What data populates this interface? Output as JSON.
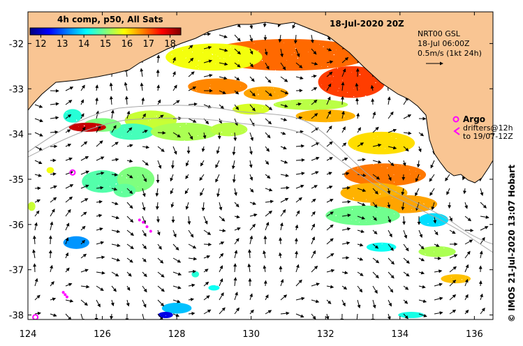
{
  "map": {
    "date_title": "18-Jul-2020 20Z",
    "credit": "© IMOS 21-Jul-2020 13:07 Hobart",
    "x_axis": {
      "min": 124,
      "max": 136.5,
      "ticks": [
        124,
        126,
        128,
        130,
        132,
        134,
        136
      ],
      "labels": [
        "124",
        "126",
        "128",
        "130",
        "132",
        "134",
        "136"
      ]
    },
    "y_axis": {
      "min": -38.1,
      "max": -31.3,
      "ticks": [
        -32,
        -33,
        -34,
        -35,
        -36,
        -37,
        -38
      ],
      "labels": [
        "-32",
        "-33",
        "-34",
        "-35",
        "-36",
        "-37",
        "-38"
      ]
    },
    "colors": {
      "land": "#f9c593",
      "ocean": "#ffffff",
      "coast": "#000000",
      "bathymetry": "#a8a8a8",
      "argo_marker": "#ff00ff",
      "drifter": "#ff00ff",
      "vector": "#000000"
    }
  },
  "colorbar": {
    "title": "4h comp, p50, All Sats",
    "min": 11.5,
    "max": 18.5,
    "tick_values": [
      12,
      13,
      14,
      15,
      16,
      17,
      18
    ],
    "tick_labels": [
      "12",
      "13",
      "14",
      "15",
      "16",
      "17",
      "18"
    ],
    "stops": [
      "#00007f",
      "#0000ff",
      "#007fff",
      "#00ffff",
      "#7fff7f",
      "#ffff00",
      "#ff7f00",
      "#ff0000",
      "#7f0000"
    ]
  },
  "current_legend": {
    "line1": "NRT00 GSL",
    "line2": "18-Jul 06:00Z",
    "line3": "0.5m/s (1kt 24h)",
    "arrow_icon": "arrow-right-icon"
  },
  "argo_legend": {
    "marker_icon": "argo-float-icon",
    "label": "Argo",
    "drifter_icon": "drifter-track-icon",
    "drifter_line1": "drifters@12h",
    "drifter_line2": "to 19/07-12Z"
  },
  "argo_floats": [
    {
      "lon": 125.2,
      "lat": -34.85
    },
    {
      "lon": 124.2,
      "lat": -38.05
    }
  ],
  "drifters": [
    {
      "points": [
        [
          127.0,
          -35.9
        ],
        [
          127.1,
          -35.95
        ],
        [
          127.2,
          -36.05
        ],
        [
          127.3,
          -36.15
        ]
      ]
    },
    {
      "points": [
        [
          124.95,
          -37.5
        ],
        [
          125.0,
          -37.55
        ],
        [
          125.05,
          -37.6
        ]
      ]
    }
  ],
  "sst_patches": [
    {
      "lon": 131.0,
      "lat": -32.25,
      "rx": 2.2,
      "ry": 0.35,
      "temp": 16.9
    },
    {
      "lon": 129.0,
      "lat": -32.3,
      "rx": 1.3,
      "ry": 0.3,
      "temp": 15.8
    },
    {
      "lon": 132.7,
      "lat": -32.85,
      "rx": 0.9,
      "ry": 0.35,
      "temp": 17.2
    },
    {
      "lon": 129.1,
      "lat": -32.95,
      "rx": 0.8,
      "ry": 0.18,
      "temp": 16.7
    },
    {
      "lon": 130.4,
      "lat": -33.1,
      "rx": 0.6,
      "ry": 0.15,
      "temp": 16.5
    },
    {
      "lon": 131.6,
      "lat": -33.35,
      "rx": 1.0,
      "ry": 0.12,
      "temp": 15.4
    },
    {
      "lon": 130.0,
      "lat": -33.45,
      "rx": 0.5,
      "ry": 0.12,
      "temp": 15.6
    },
    {
      "lon": 132.0,
      "lat": -33.6,
      "rx": 0.8,
      "ry": 0.14,
      "temp": 16.4
    },
    {
      "lon": 127.3,
      "lat": -33.7,
      "rx": 0.7,
      "ry": 0.22,
      "temp": 15.5
    },
    {
      "lon": 126.8,
      "lat": -33.95,
      "rx": 0.6,
      "ry": 0.18,
      "temp": 14.6
    },
    {
      "lon": 128.2,
      "lat": -33.95,
      "rx": 0.9,
      "ry": 0.2,
      "temp": 15.3
    },
    {
      "lon": 129.4,
      "lat": -33.9,
      "rx": 0.5,
      "ry": 0.15,
      "temp": 15.4
    },
    {
      "lon": 126.0,
      "lat": -33.8,
      "rx": 0.5,
      "ry": 0.15,
      "temp": 15.0
    },
    {
      "lon": 125.2,
      "lat": -33.6,
      "rx": 0.25,
      "ry": 0.15,
      "temp": 14.4
    },
    {
      "lon": 125.6,
      "lat": -33.85,
      "rx": 0.5,
      "ry": 0.1,
      "temp": 18.0
    },
    {
      "lon": 126.0,
      "lat": -35.05,
      "rx": 0.55,
      "ry": 0.25,
      "temp": 14.7
    },
    {
      "lon": 126.9,
      "lat": -35.0,
      "rx": 0.5,
      "ry": 0.28,
      "temp": 15.0
    },
    {
      "lon": 126.6,
      "lat": -35.25,
      "rx": 0.3,
      "ry": 0.15,
      "temp": 14.8
    },
    {
      "lon": 133.5,
      "lat": -34.2,
      "rx": 0.9,
      "ry": 0.25,
      "temp": 16.1
    },
    {
      "lon": 133.6,
      "lat": -34.9,
      "rx": 1.1,
      "ry": 0.25,
      "temp": 16.8
    },
    {
      "lon": 133.3,
      "lat": -35.3,
      "rx": 0.9,
      "ry": 0.22,
      "temp": 16.4
    },
    {
      "lon": 134.1,
      "lat": -35.55,
      "rx": 0.9,
      "ry": 0.2,
      "temp": 16.5
    },
    {
      "lon": 133.0,
      "lat": -35.8,
      "rx": 1.0,
      "ry": 0.22,
      "temp": 14.9
    },
    {
      "lon": 134.9,
      "lat": -35.9,
      "rx": 0.4,
      "ry": 0.15,
      "temp": 13.9
    },
    {
      "lon": 133.5,
      "lat": -36.5,
      "rx": 0.4,
      "ry": 0.1,
      "temp": 14.2
    },
    {
      "lon": 135.0,
      "lat": -36.6,
      "rx": 0.5,
      "ry": 0.12,
      "temp": 15.3
    },
    {
      "lon": 135.5,
      "lat": -37.2,
      "rx": 0.4,
      "ry": 0.1,
      "temp": 16.3
    },
    {
      "lon": 125.3,
      "lat": -36.4,
      "rx": 0.35,
      "ry": 0.14,
      "temp": 13.4
    },
    {
      "lon": 124.1,
      "lat": -35.6,
      "rx": 0.1,
      "ry": 0.1,
      "temp": 15.5
    },
    {
      "lon": 124.6,
      "lat": -34.8,
      "rx": 0.1,
      "ry": 0.07,
      "temp": 15.8
    },
    {
      "lon": 128.0,
      "lat": -37.85,
      "rx": 0.4,
      "ry": 0.12,
      "temp": 13.7
    },
    {
      "lon": 127.7,
      "lat": -38.0,
      "rx": 0.2,
      "ry": 0.07,
      "temp": 12.2
    },
    {
      "lon": 134.3,
      "lat": -38.0,
      "rx": 0.35,
      "ry": 0.07,
      "temp": 14.3
    },
    {
      "lon": 128.5,
      "lat": -37.1,
      "rx": 0.1,
      "ry": 0.07,
      "temp": 14.4
    },
    {
      "lon": 129.0,
      "lat": -37.4,
      "rx": 0.15,
      "ry": 0.06,
      "temp": 14.2
    }
  ]
}
